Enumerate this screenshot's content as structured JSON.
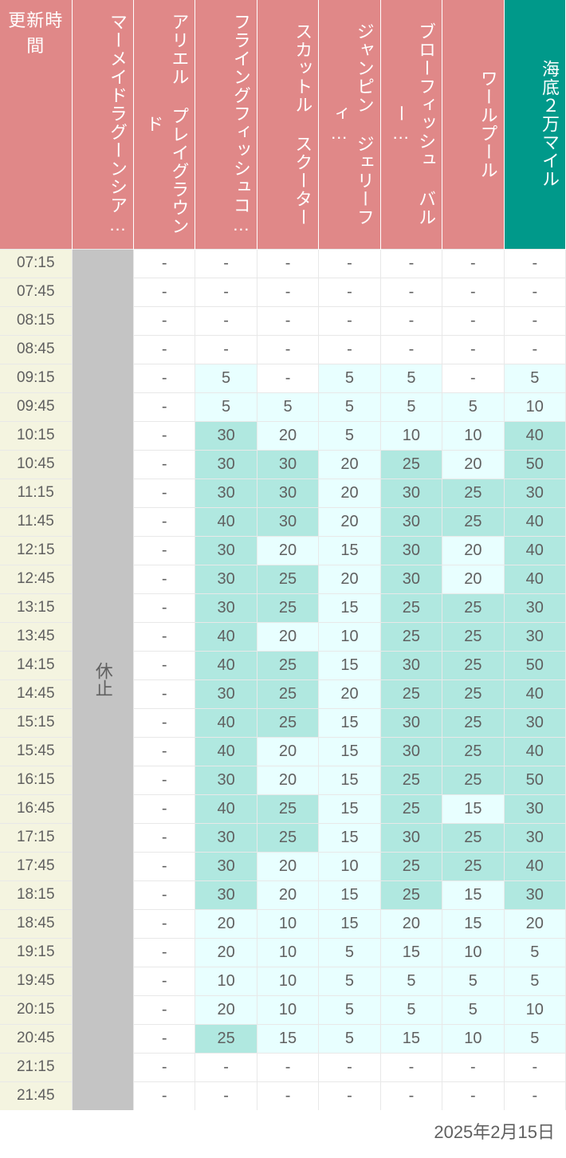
{
  "date": "2025年2月15日",
  "headers": {
    "time": "更新時間",
    "columns": [
      {
        "label": "マーメイドラグーンシア…",
        "color": "pink"
      },
      {
        "label": "アリエル プレイグラウンド",
        "color": "pink"
      },
      {
        "label": "フライングフィッシュコ…",
        "color": "pink"
      },
      {
        "label": "スカットル スクーター",
        "color": "pink"
      },
      {
        "label": "ジャンピン ジェリーフィ…",
        "color": "pink"
      },
      {
        "label": "ブローフィッシュ バルー…",
        "color": "pink"
      },
      {
        "label": "ワールプール",
        "color": "pink"
      },
      {
        "label": "海底２万マイル",
        "color": "teal"
      }
    ]
  },
  "closed_label": "休止",
  "times": [
    "07:15",
    "07:45",
    "08:15",
    "08:45",
    "09:15",
    "09:45",
    "10:15",
    "10:45",
    "11:15",
    "11:45",
    "12:15",
    "12:45",
    "13:15",
    "13:45",
    "14:15",
    "14:45",
    "15:15",
    "15:45",
    "16:15",
    "16:45",
    "17:15",
    "17:45",
    "18:15",
    "18:45",
    "19:15",
    "19:45",
    "20:15",
    "20:45",
    "21:15",
    "21:45"
  ],
  "colors": {
    "pink_header": "#e08888",
    "teal_header": "#00998a",
    "time_bg": "#f4f4e0",
    "closed_bg": "#c4c4c4",
    "white": "#ffffff",
    "light_cyan": "#e8ffff",
    "med_cyan": "#b0e8e0",
    "text": "#606060",
    "border": "#e8e8e8"
  },
  "thresholds": {
    "light_min": 5,
    "med_min": 25
  },
  "data": {
    "col2": [
      "-",
      "-",
      "-",
      "-",
      "-",
      "-",
      "-",
      "-",
      "-",
      "-",
      "-",
      "-",
      "-",
      "-",
      "-",
      "-",
      "-",
      "-",
      "-",
      "-",
      "-",
      "-",
      "-",
      "-",
      "-",
      "-",
      "-",
      "-",
      "-",
      "-"
    ],
    "col3": [
      "-",
      "-",
      "-",
      "-",
      "5",
      "5",
      "30",
      "30",
      "30",
      "40",
      "30",
      "30",
      "30",
      "40",
      "40",
      "30",
      "40",
      "40",
      "30",
      "40",
      "30",
      "30",
      "30",
      "20",
      "20",
      "10",
      "20",
      "25",
      "-",
      "-"
    ],
    "col4": [
      "-",
      "-",
      "-",
      "-",
      "-",
      "5",
      "20",
      "30",
      "30",
      "30",
      "20",
      "25",
      "25",
      "20",
      "25",
      "25",
      "25",
      "20",
      "20",
      "25",
      "25",
      "20",
      "20",
      "10",
      "10",
      "10",
      "10",
      "15",
      "-",
      "-"
    ],
    "col5": [
      "-",
      "-",
      "-",
      "-",
      "5",
      "5",
      "5",
      "20",
      "20",
      "20",
      "15",
      "20",
      "15",
      "10",
      "15",
      "20",
      "15",
      "15",
      "15",
      "15",
      "15",
      "10",
      "15",
      "15",
      "5",
      "5",
      "5",
      "5",
      "-",
      "-"
    ],
    "col6": [
      "-",
      "-",
      "-",
      "-",
      "5",
      "5",
      "10",
      "25",
      "30",
      "30",
      "30",
      "30",
      "25",
      "25",
      "30",
      "25",
      "30",
      "30",
      "25",
      "25",
      "30",
      "25",
      "25",
      "20",
      "15",
      "5",
      "5",
      "15",
      "-",
      "-"
    ],
    "col7": [
      "-",
      "-",
      "-",
      "-",
      "-",
      "5",
      "10",
      "20",
      "25",
      "25",
      "20",
      "20",
      "25",
      "25",
      "25",
      "25",
      "25",
      "25",
      "25",
      "15",
      "25",
      "25",
      "15",
      "15",
      "10",
      "5",
      "5",
      "10",
      "-",
      "-"
    ],
    "col8": [
      "-",
      "-",
      "-",
      "-",
      "5",
      "10",
      "40",
      "50",
      "30",
      "40",
      "40",
      "40",
      "30",
      "30",
      "50",
      "40",
      "30",
      "40",
      "50",
      "30",
      "30",
      "40",
      "30",
      "20",
      "5",
      "5",
      "10",
      "5",
      "-",
      "-"
    ]
  }
}
